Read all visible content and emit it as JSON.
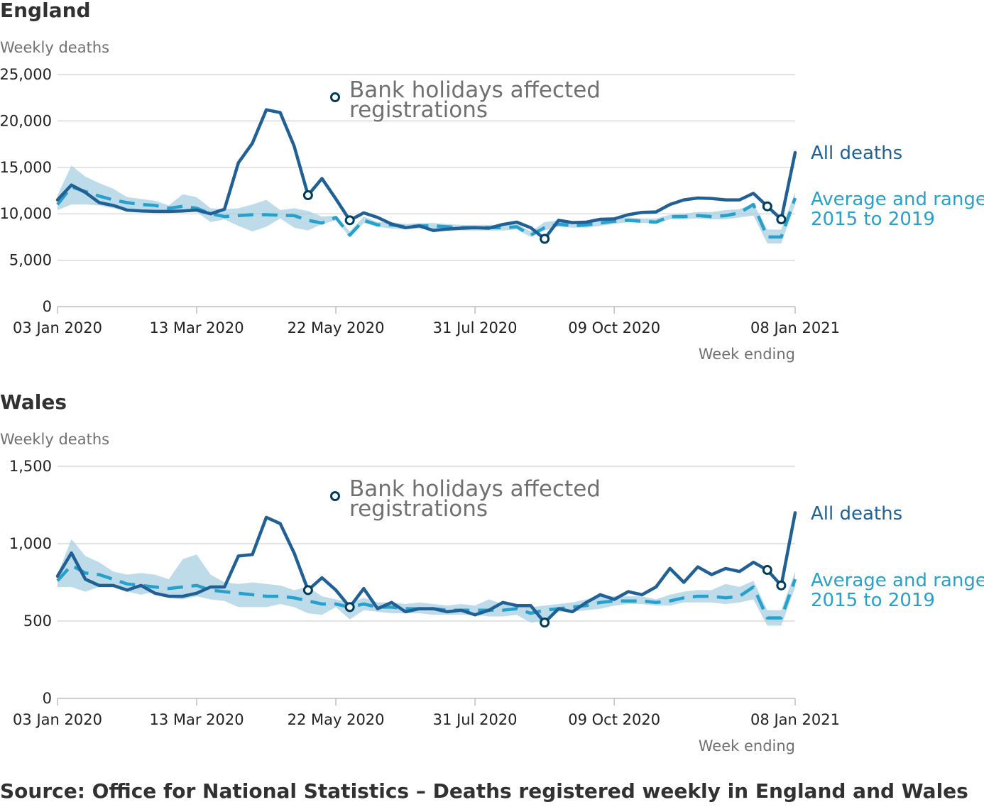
{
  "source": "Source: Office for National Statistics – Deaths registered weekly in England and Wales",
  "colors": {
    "all_deaths": "#206095",
    "average": "#27a0cc",
    "range_band": "#a8cfe2",
    "marker_fill": "#ffffff",
    "marker_stroke": "#003c57"
  },
  "chart_data": [
    {
      "type": "line",
      "title": "England",
      "ylabel": "Weekly deaths",
      "xlabel": "Week ending",
      "ylim": [
        0,
        25000
      ],
      "yticks": [
        0,
        5000,
        10000,
        15000,
        20000,
        25000
      ],
      "ytick_labels": [
        "0",
        "5,000",
        "10,000",
        "15,000",
        "20,000",
        "25,000"
      ],
      "x_start": "03 Jan 2020",
      "x_end": "08 Jan 2021",
      "xticks": [
        {
          "week": 1,
          "label": "03 Jan 2020"
        },
        {
          "week": 11,
          "label": "13 Mar 2020"
        },
        {
          "week": 21,
          "label": "22 May 2020"
        },
        {
          "week": 31,
          "label": "31 Jul 2020"
        },
        {
          "week": 41,
          "label": "09 Oct 2020"
        },
        {
          "week": 54,
          "label": "08 Jan 2021"
        }
      ],
      "grid": true,
      "annotation": {
        "text_line1": "Bank holidays affected",
        "text_line2": "registrations"
      },
      "label_all": "All deaths",
      "label_avg_line1": "Average and range",
      "label_avg_line2": "2015 to 2019",
      "series": [
        {
          "name": "All deaths",
          "values": [
            11500,
            13100,
            12300,
            11200,
            10900,
            10400,
            10300,
            10250,
            10250,
            10300,
            10400,
            10000,
            10500,
            15500,
            17600,
            21200,
            20900,
            17300,
            12000,
            13800,
            11600,
            9300,
            10100,
            9600,
            8900,
            8500,
            8700,
            8200,
            8350,
            8450,
            8500,
            8450,
            8850,
            9100,
            8500,
            7300,
            9300,
            9050,
            9100,
            9400,
            9450,
            9900,
            10150,
            10200,
            11000,
            11500,
            11700,
            11650,
            11500,
            11500,
            12200,
            10800,
            9400,
            16600
          ]
        },
        {
          "name": "Average and range 2015 to 2019",
          "values": [
            11000,
            12900,
            12400,
            11900,
            11500,
            11200,
            11000,
            10900,
            10600,
            10800,
            10600,
            10000,
            9700,
            9800,
            9900,
            9900,
            9850,
            9800,
            9300,
            9000,
            9600,
            7700,
            9300,
            8800,
            8800,
            8600,
            8700,
            8700,
            8600,
            8500,
            8500,
            8500,
            8500,
            8600,
            7700,
            8500,
            8900,
            8700,
            8800,
            9000,
            9200,
            9300,
            9200,
            9100,
            9700,
            9700,
            9800,
            9700,
            9800,
            10100,
            11000,
            7500,
            7500,
            11700
          ]
        }
      ],
      "range_min": [
        10400,
        11000,
        11000,
        10900,
        10600,
        10400,
        10300,
        10300,
        10200,
        10300,
        10200,
        9100,
        9400,
        8700,
        8100,
        8600,
        9500,
        8500,
        8200,
        8900,
        9300,
        7500,
        9000,
        8600,
        8400,
        8300,
        8400,
        8200,
        8200,
        8200,
        8200,
        8200,
        8200,
        8300,
        7500,
        8200,
        8600,
        8500,
        8500,
        8700,
        8900,
        9100,
        9000,
        9000,
        9400,
        9400,
        9500,
        9400,
        9400,
        9600,
        9800,
        6800,
        6800,
        11000
      ],
      "range_max": [
        12000,
        15200,
        14000,
        13300,
        12700,
        11800,
        11600,
        11400,
        10900,
        12100,
        11800,
        10600,
        10500,
        10600,
        11000,
        11500,
        10400,
        10600,
        10300,
        9700,
        9800,
        8100,
        9700,
        9100,
        9100,
        8900,
        9000,
        9000,
        8900,
        8800,
        8800,
        8800,
        8800,
        8900,
        8100,
        9100,
        9300,
        9000,
        9100,
        9300,
        9500,
        9600,
        9500,
        9500,
        9900,
        10000,
        10200,
        10200,
        10400,
        10500,
        11100,
        8300,
        8300,
        12300
      ],
      "bank_holiday_weeks": [
        19,
        22,
        36,
        52,
        53
      ]
    },
    {
      "type": "line",
      "title": "Wales",
      "ylabel": "Weekly deaths",
      "xlabel": "Week ending",
      "ylim": [
        0,
        1500
      ],
      "yticks": [
        0,
        500,
        1000,
        1500
      ],
      "ytick_labels": [
        "0",
        "500",
        "1,000",
        "1,500"
      ],
      "x_start": "03 Jan 2020",
      "x_end": "08 Jan 2021",
      "xticks": [
        {
          "week": 1,
          "label": "03 Jan 2020"
        },
        {
          "week": 11,
          "label": "13 Mar 2020"
        },
        {
          "week": 21,
          "label": "22 May 2020"
        },
        {
          "week": 31,
          "label": "31 Jul 2020"
        },
        {
          "week": 41,
          "label": "09 Oct 2020"
        },
        {
          "week": 54,
          "label": "08 Jan 2021"
        }
      ],
      "grid": true,
      "annotation": {
        "text_line1": "Bank holidays affected",
        "text_line2": "registrations"
      },
      "label_all": "All deaths",
      "label_avg_line1": "Average and range",
      "label_avg_line2": "2015 to 2019",
      "series": [
        {
          "name": "All deaths",
          "values": [
            790,
            940,
            770,
            730,
            730,
            700,
            730,
            680,
            660,
            660,
            680,
            720,
            720,
            920,
            930,
            1170,
            1130,
            940,
            700,
            780,
            700,
            590,
            710,
            580,
            620,
            560,
            580,
            580,
            560,
            570,
            540,
            570,
            620,
            600,
            600,
            490,
            580,
            560,
            620,
            670,
            640,
            690,
            670,
            720,
            840,
            750,
            850,
            800,
            840,
            820,
            880,
            830,
            730,
            1200
          ]
        },
        {
          "name": "Average and range 2015 to 2019",
          "values": [
            760,
            860,
            810,
            800,
            770,
            740,
            730,
            720,
            710,
            720,
            730,
            700,
            690,
            680,
            670,
            660,
            660,
            650,
            630,
            610,
            610,
            590,
            610,
            590,
            590,
            580,
            580,
            580,
            570,
            570,
            570,
            570,
            570,
            580,
            550,
            570,
            580,
            590,
            600,
            620,
            630,
            630,
            630,
            620,
            630,
            650,
            660,
            660,
            650,
            660,
            720,
            520,
            520,
            770
          ]
        }
      ],
      "range_min": [
        720,
        720,
        690,
        720,
        720,
        690,
        670,
        690,
        650,
        640,
        660,
        640,
        630,
        590,
        590,
        590,
        610,
        590,
        550,
        540,
        590,
        510,
        570,
        560,
        550,
        550,
        550,
        540,
        540,
        540,
        540,
        530,
        530,
        540,
        490,
        500,
        560,
        560,
        570,
        580,
        600,
        610,
        610,
        600,
        600,
        620,
        620,
        620,
        610,
        620,
        640,
        470,
        470,
        720
      ],
      "range_max": [
        800,
        1030,
        920,
        880,
        820,
        800,
        810,
        800,
        770,
        900,
        930,
        800,
        750,
        740,
        750,
        740,
        730,
        700,
        720,
        660,
        640,
        620,
        650,
        620,
        620,
        610,
        620,
        610,
        600,
        610,
        600,
        640,
        610,
        610,
        590,
        600,
        610,
        620,
        640,
        660,
        660,
        660,
        660,
        640,
        670,
        690,
        700,
        700,
        740,
        720,
        760,
        570,
        570,
        820
      ],
      "bank_holiday_weeks": [
        19,
        22,
        36,
        52,
        53
      ]
    }
  ]
}
